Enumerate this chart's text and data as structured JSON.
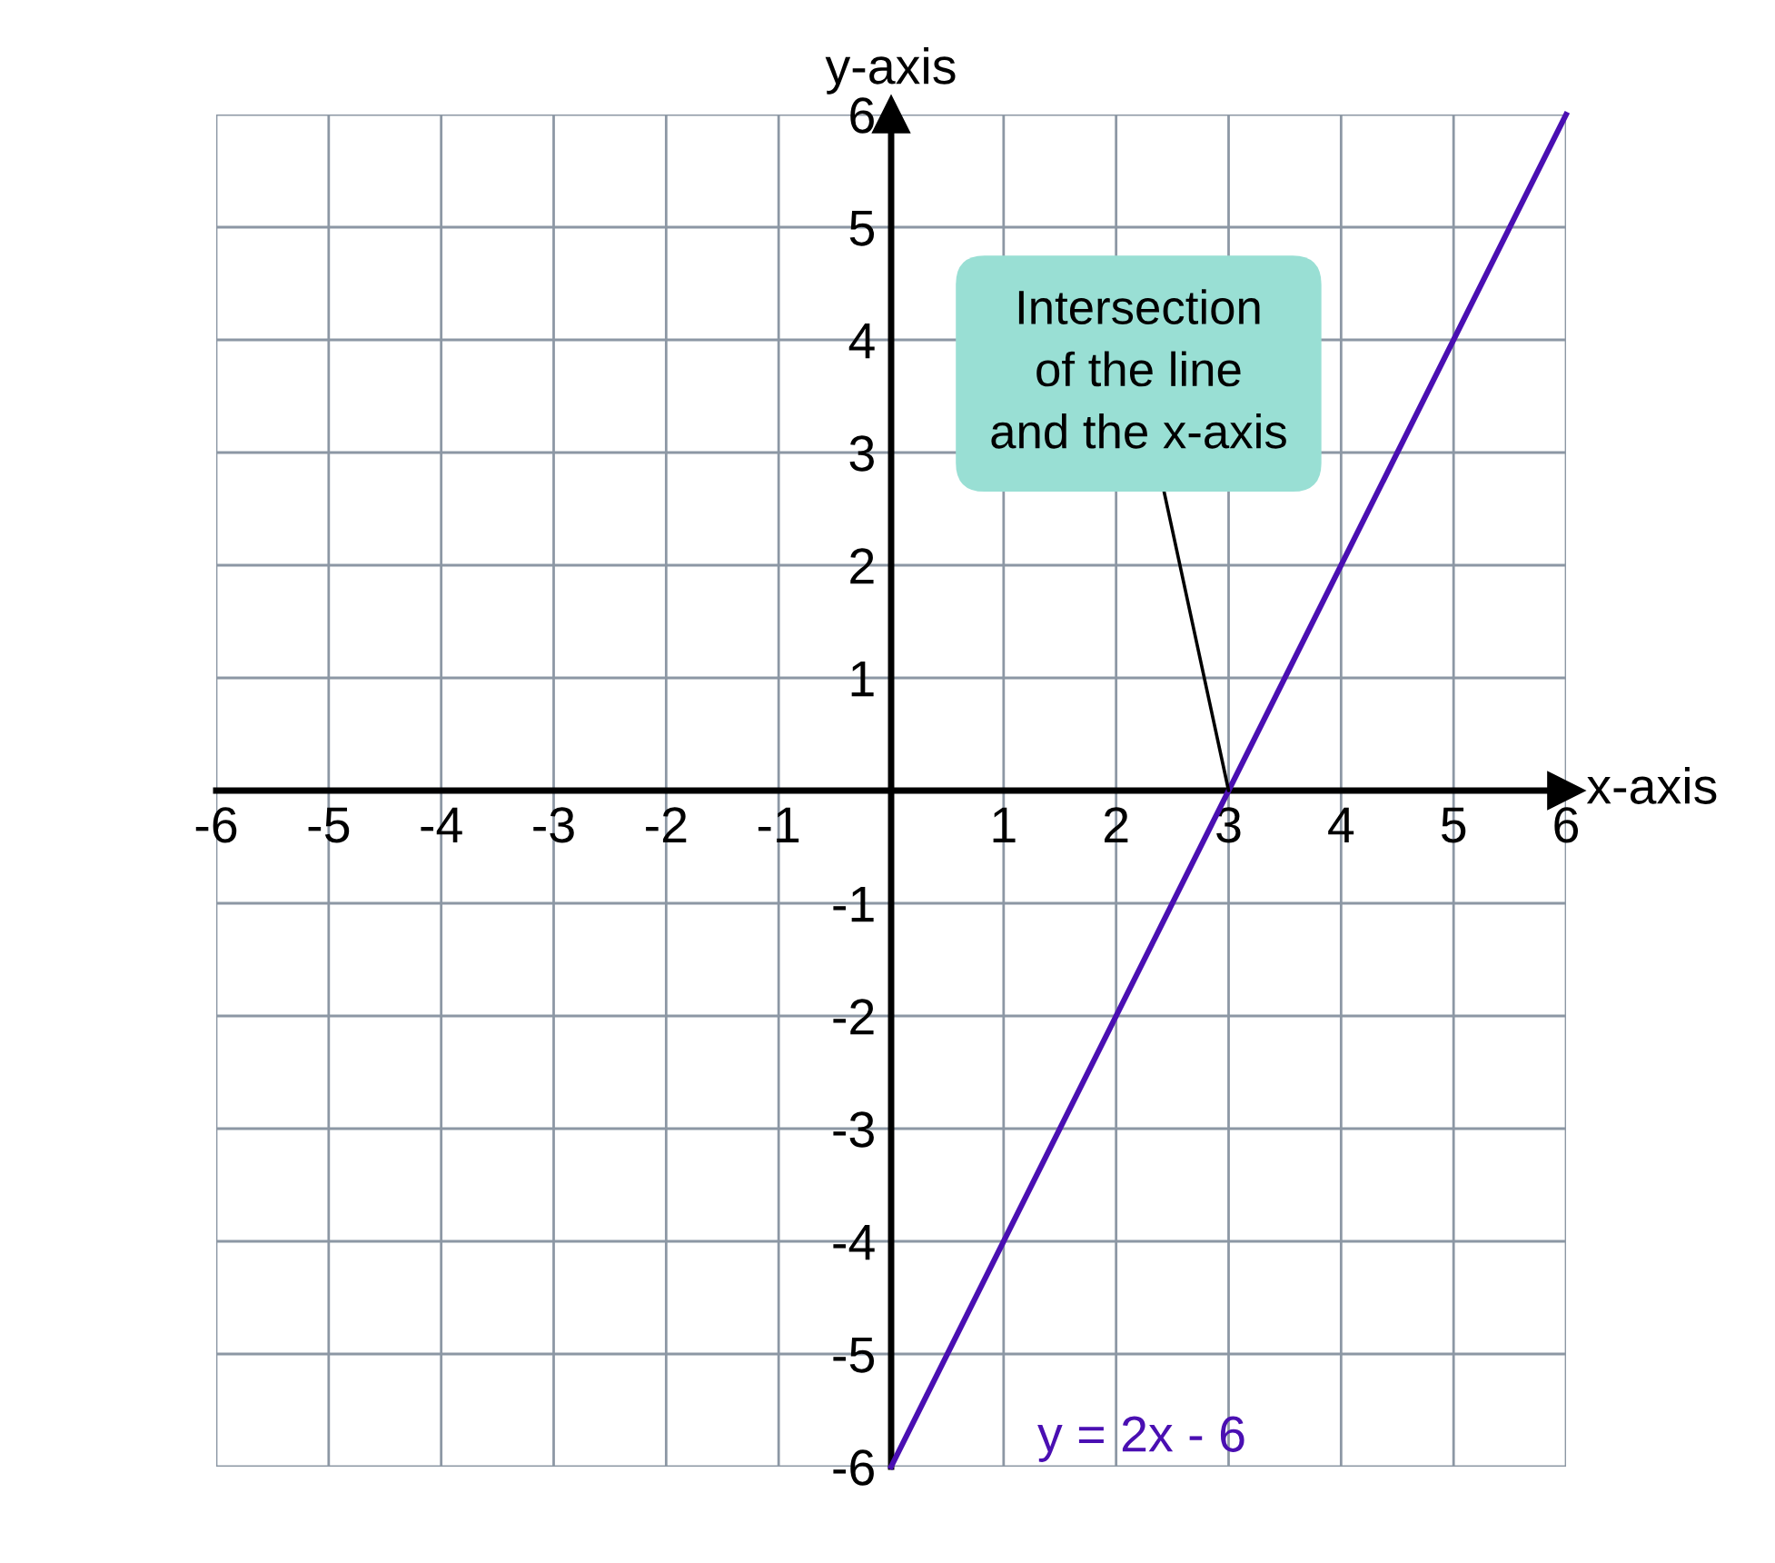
{
  "chart_data": {
    "type": "line",
    "xlabel": "x-axis",
    "ylabel": "y-axis",
    "x": [
      0,
      6
    ],
    "series": [
      {
        "name": "y = 2x - 6",
        "color": "#4a0fb2",
        "values": [
          -6,
          6
        ]
      }
    ],
    "xlim": [
      -6,
      6
    ],
    "ylim": [
      -6,
      6
    ],
    "xticks": [
      -6,
      -5,
      -4,
      -3,
      -2,
      -1,
      {
        "value": 0,
        "label": null
      },
      1,
      2,
      3,
      4,
      5,
      6
    ],
    "yticks": [
      -6,
      -5,
      -4,
      -3,
      -2,
      -1,
      {
        "value": 0,
        "label": null
      },
      1,
      2,
      3,
      4,
      5,
      6
    ],
    "grid": true,
    "annotations": [
      {
        "text": "Intersection\nof the line\nand the x-axis",
        "x": 3,
        "y": 0
      }
    ]
  }
}
